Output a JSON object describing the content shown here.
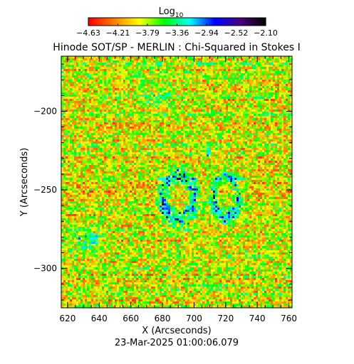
{
  "chart_data": {
    "type": "heatmap",
    "title": "Hinode SOT/SP - MERLIN : Chi-Squared in Stokes I",
    "timestamp": "23-Mar-2025 01:00:06.079",
    "xlabel": "X (Arcseconds)",
    "ylabel": "Y (Arcseconds)",
    "xlim": [
      616,
      762
    ],
    "ylim": [
      -325,
      -165
    ],
    "x_ticks": [
      620,
      640,
      660,
      680,
      700,
      720,
      740,
      760
    ],
    "y_ticks": [
      -200,
      -250,
      -300
    ],
    "colorbar": {
      "label": "Log",
      "label_subscript": "10",
      "min": -4.63,
      "max": -2.1,
      "tick_labels": [
        "-4.63",
        "-4.21",
        "-3.79",
        "-3.36",
        "-2.94",
        "-2.52",
        "-2.10"
      ],
      "colors": [
        "#ff0000",
        "#ff8000",
        "#ffff00",
        "#00ff00",
        "#00ffff",
        "#0000ff",
        "#4b0082",
        "#000000"
      ]
    },
    "background_level": -3.9,
    "features": [
      {
        "name": "ring",
        "center": [
          690,
          -255
        ],
        "radius_x": 10,
        "radius_y": 14,
        "level": -3.2
      },
      {
        "name": "ring",
        "center": [
          720,
          -255
        ],
        "radius_x": 8,
        "radius_y": 13,
        "level": -3.3
      },
      {
        "name": "blob",
        "center": [
          632,
          -282
        ],
        "radius_x": 9,
        "radius_y": 7,
        "level": -3.4
      },
      {
        "name": "blob",
        "center": [
          708,
          -226
        ],
        "radius_x": 3,
        "radius_y": 3,
        "level": -3.3
      },
      {
        "name": "blob",
        "center": [
          676,
          -190
        ],
        "radius_x": 12,
        "radius_y": 10,
        "level": -3.6
      }
    ]
  }
}
